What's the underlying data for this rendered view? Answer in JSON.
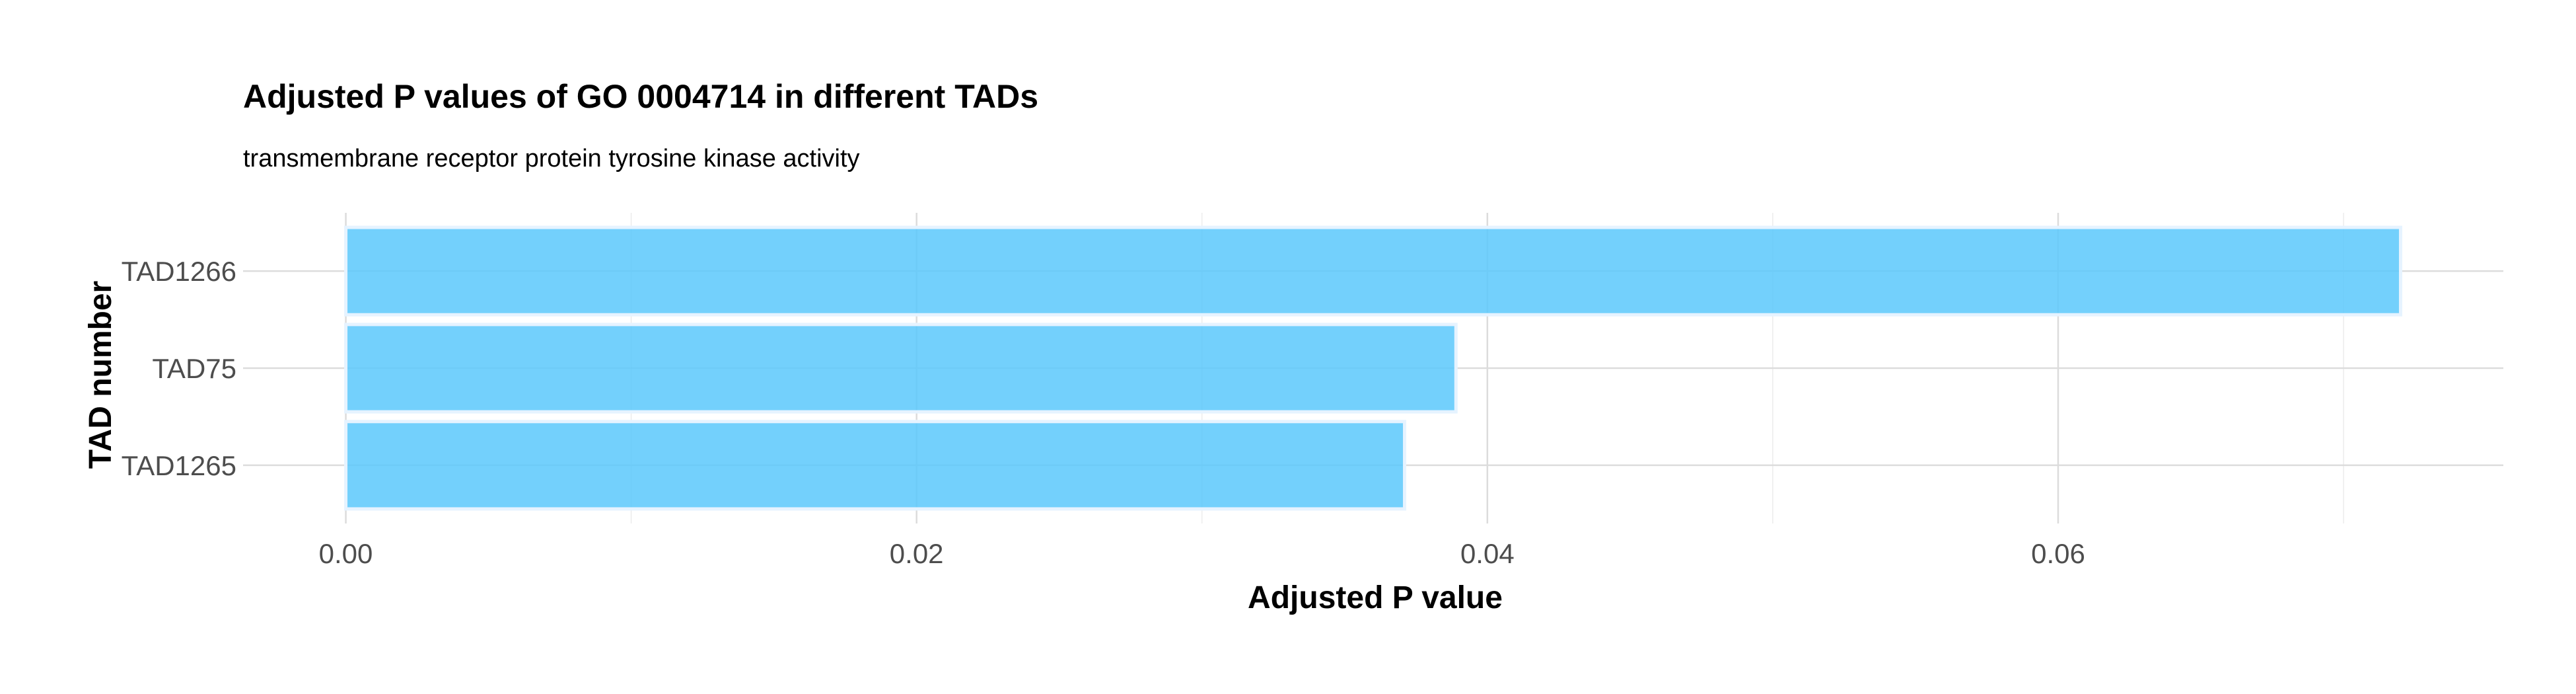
{
  "chart_data": {
    "type": "bar",
    "orientation": "horizontal",
    "title": "Adjusted P values of GO 0004714 in different TADs",
    "subtitle": "transmembrane receptor protein tyrosine kinase activity",
    "xlabel": "Adjusted P value",
    "ylabel": "TAD number",
    "categories": [
      "TAD1266",
      "TAD75",
      "TAD1265"
    ],
    "values": [
      0.072,
      0.0389,
      0.0371
    ],
    "xlim": [
      -0.0036,
      0.0756
    ],
    "xticks": [
      0.0,
      0.02,
      0.04,
      0.06
    ],
    "xtick_labels": [
      "0.00",
      "0.02",
      "0.04",
      "0.06"
    ],
    "grid": true,
    "bar_color": "#5BC8FB"
  }
}
